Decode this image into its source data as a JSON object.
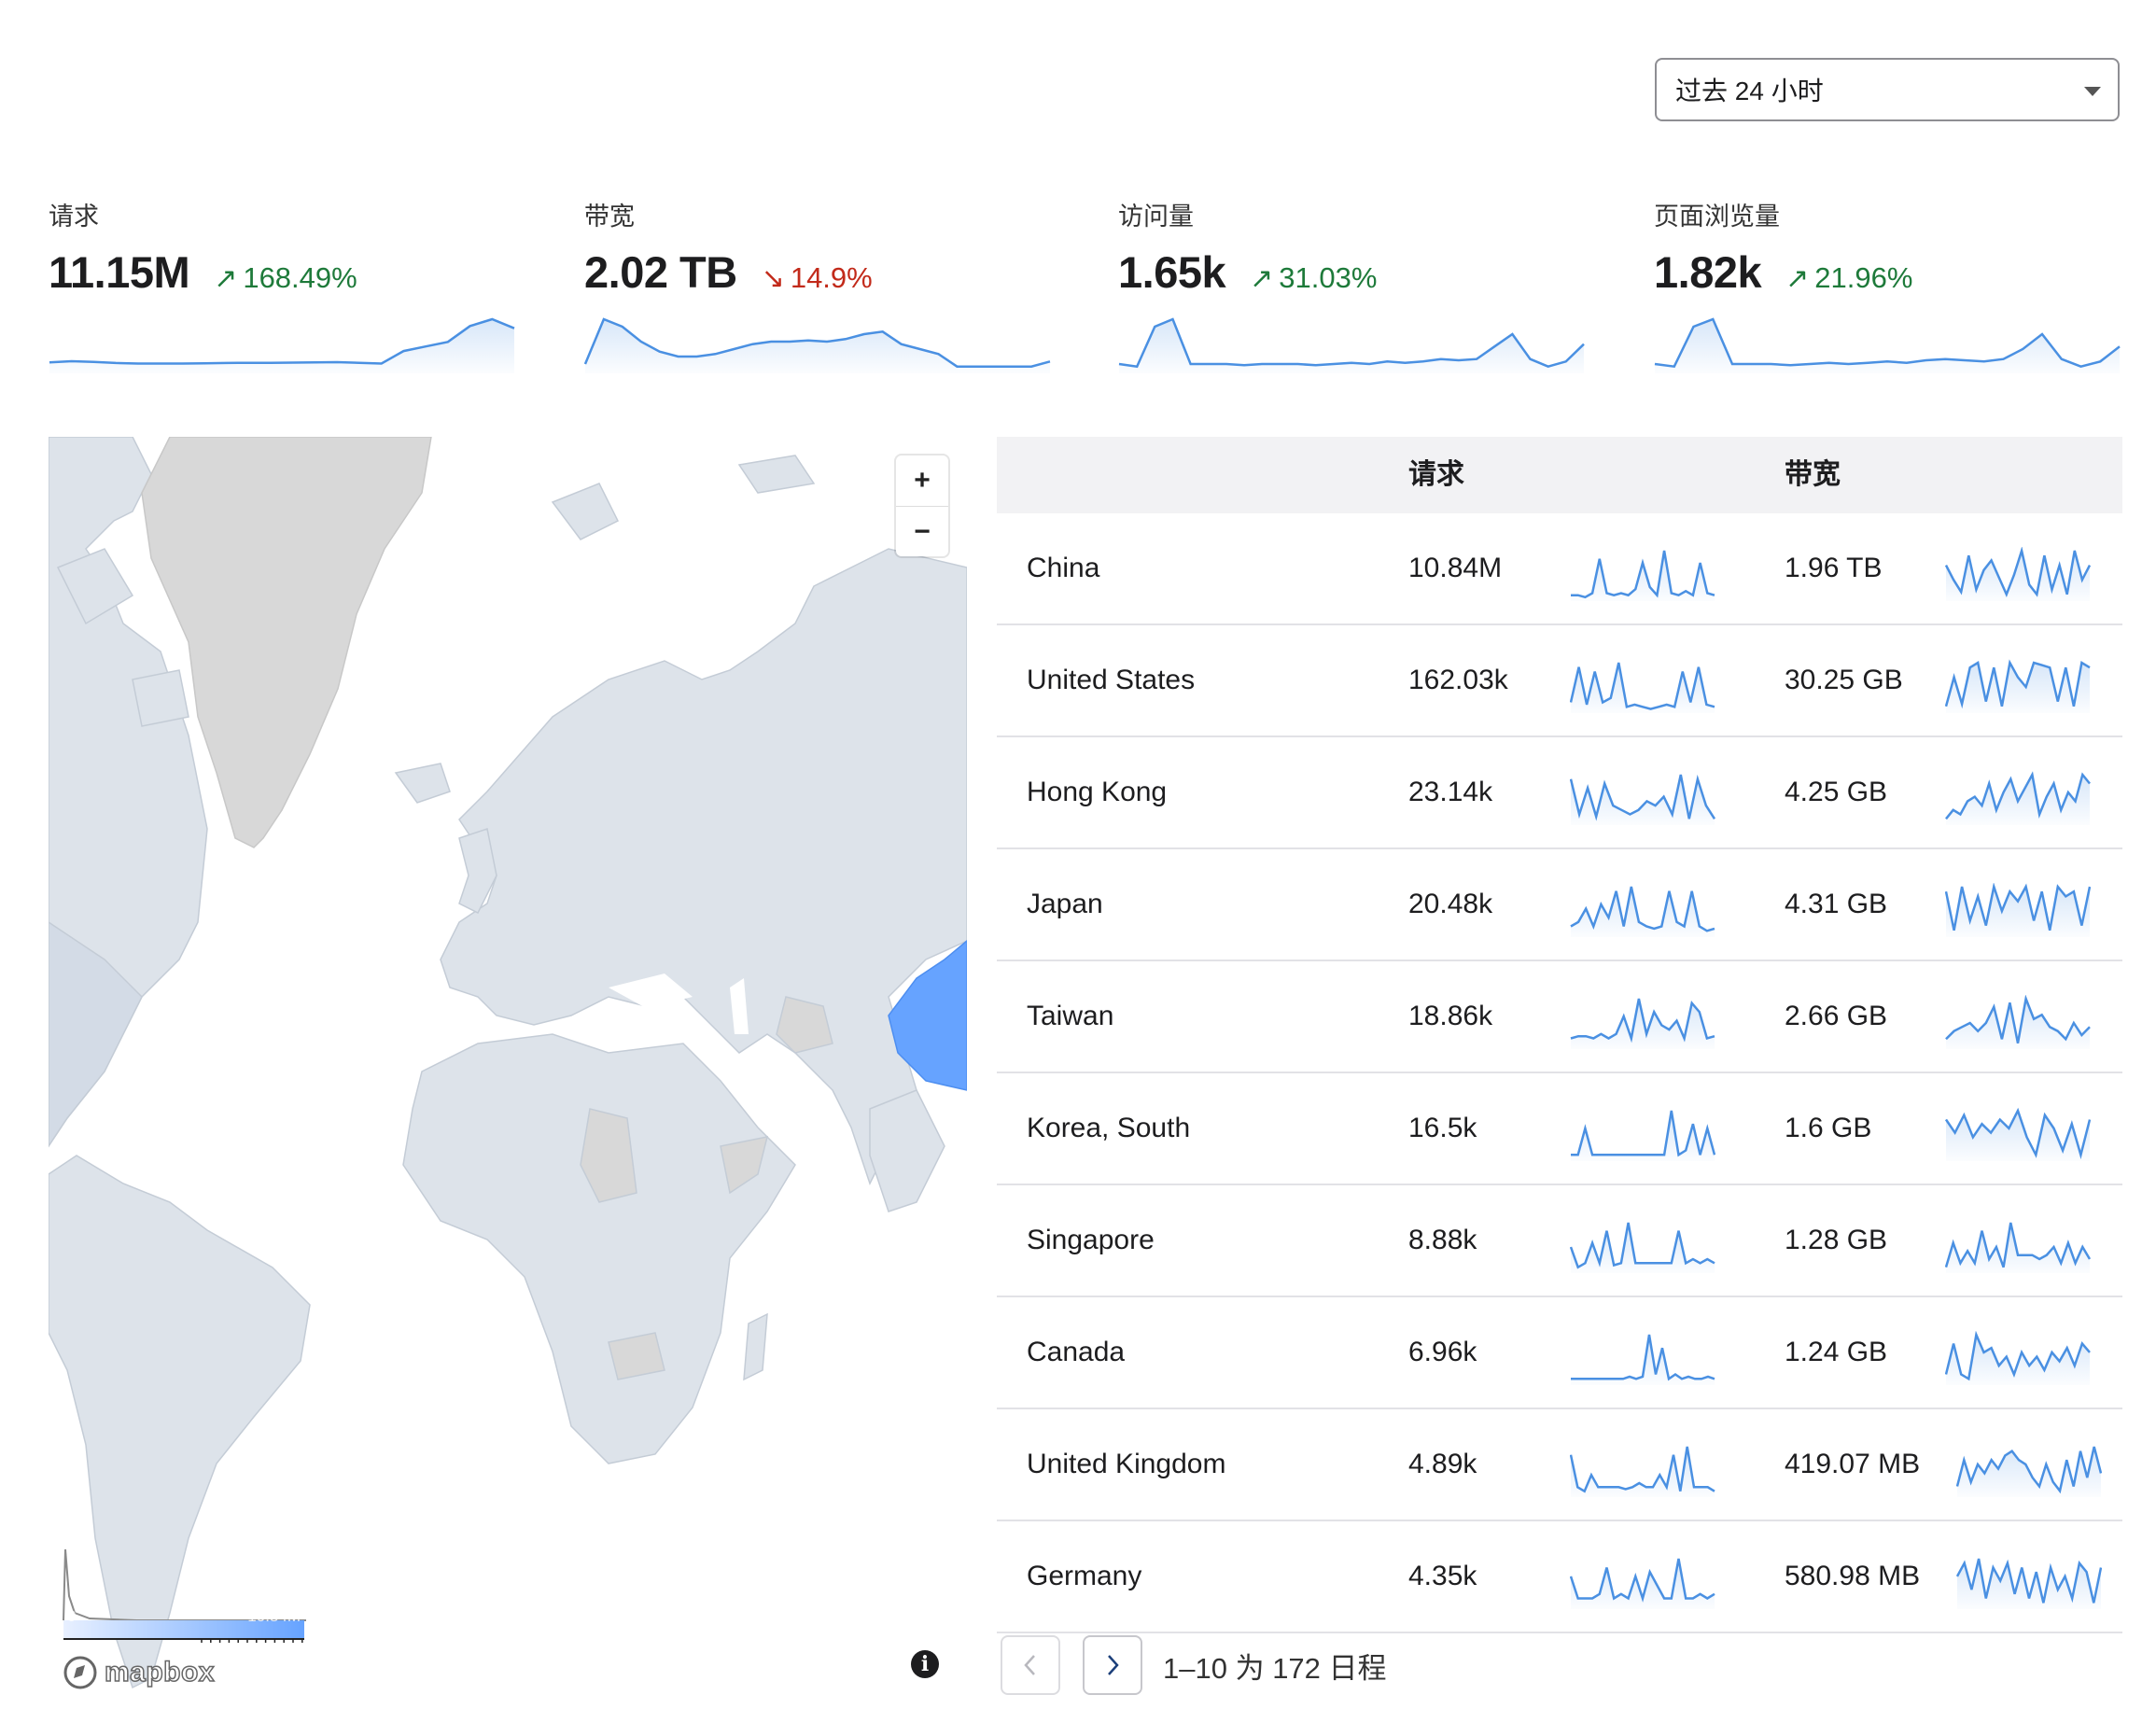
{
  "time_range": {
    "selected": "过去 24 小时"
  },
  "kpis": [
    {
      "label": "请求",
      "value": "11.15M",
      "change": "168.49%",
      "direction": "up",
      "trend": [
        8,
        9,
        8.5,
        7.5,
        7,
        7,
        7,
        7.2,
        7.5,
        7.6,
        7.6,
        7.8,
        8,
        8.2,
        7.6,
        7,
        18,
        22,
        26,
        40,
        46,
        38
      ]
    },
    {
      "label": "带宽",
      "value": "2.02 TB",
      "change": "14.9%",
      "direction": "down",
      "trend": [
        6,
        42,
        36,
        24,
        16,
        12,
        12,
        14,
        18,
        22,
        24,
        24,
        25,
        24,
        26,
        30,
        32,
        22,
        18,
        14,
        4,
        4,
        4,
        4,
        4,
        8
      ]
    },
    {
      "label": "访问量",
      "value": "1.65k",
      "change": "31.03%",
      "direction": "up",
      "trend": [
        6,
        4,
        36,
        42,
        6,
        6,
        6,
        5,
        6,
        6,
        6,
        5,
        6,
        7,
        6,
        8,
        7,
        8,
        10,
        9,
        10,
        20,
        30,
        10,
        4,
        8,
        22
      ]
    },
    {
      "label": "页面浏览量",
      "value": "1.82k",
      "change": "21.96%",
      "direction": "up",
      "trend": [
        6,
        4,
        36,
        42,
        6,
        6,
        6,
        5,
        6,
        7,
        6,
        7,
        8,
        7,
        9,
        10,
        9,
        8,
        10,
        18,
        30,
        10,
        4,
        8,
        20
      ]
    }
  ],
  "map": {
    "zoom_in": "+",
    "zoom_out": "−",
    "legend_min": "0",
    "legend_max": "10.84M",
    "attribution": "mapbox",
    "info": "i",
    "highlight_color": "#66a3ff",
    "land_color": "#dde3ea",
    "nodata_color": "#d8d8d8"
  },
  "table": {
    "columns": [
      "",
      "请求",
      "",
      "带宽",
      ""
    ],
    "rows": [
      {
        "country": "China",
        "requests": "10.84M",
        "bandwidth": "1.96 TB",
        "req_spark": [
          2,
          2,
          1,
          3,
          20,
          3,
          2,
          3,
          2,
          5,
          18,
          6,
          2,
          24,
          3,
          2,
          4,
          2,
          18,
          3,
          2
        ],
        "bw_spark": [
          14,
          8,
          3,
          18,
          4,
          12,
          16,
          9,
          2,
          10,
          20,
          6,
          2,
          18,
          4,
          14,
          2,
          20,
          8,
          14
        ]
      },
      {
        "country": "United States",
        "requests": "162.03k",
        "bandwidth": "30.25 GB",
        "req_spark": [
          4,
          20,
          3,
          18,
          4,
          6,
          22,
          2,
          3,
          2,
          1,
          2,
          3,
          2,
          18,
          4,
          20,
          3,
          2
        ],
        "bw_spark": [
          2,
          14,
          3,
          18,
          20,
          4,
          18,
          2,
          20,
          14,
          10,
          20,
          19,
          18,
          4,
          18,
          2,
          20,
          18
        ]
      },
      {
        "country": "Hong Kong",
        "requests": "23.14k",
        "bandwidth": "4.25 GB",
        "req_spark": [
          20,
          4,
          16,
          3,
          18,
          8,
          6,
          4,
          6,
          10,
          8,
          12,
          4,
          22,
          2,
          20,
          8,
          2
        ],
        "bw_spark": [
          2,
          6,
          4,
          10,
          12,
          8,
          18,
          6,
          14,
          20,
          10,
          16,
          22,
          4,
          12,
          18,
          6,
          14,
          10,
          22,
          18
        ]
      },
      {
        "country": "Japan",
        "requests": "20.48k",
        "bandwidth": "4.31 GB",
        "req_spark": [
          4,
          6,
          12,
          4,
          14,
          8,
          20,
          4,
          22,
          6,
          4,
          3,
          4,
          20,
          6,
          4,
          20,
          4,
          2,
          3
        ],
        "bw_spark": [
          18,
          2,
          20,
          6,
          16,
          4,
          20,
          10,
          18,
          14,
          20,
          6,
          18,
          2,
          20,
          16,
          18,
          4,
          20
        ]
      },
      {
        "country": "Taiwan",
        "requests": "18.86k",
        "bandwidth": "2.66 GB",
        "req_spark": [
          4,
          5,
          5,
          4,
          6,
          4,
          6,
          14,
          4,
          22,
          6,
          16,
          10,
          8,
          12,
          4,
          20,
          16,
          4,
          5
        ],
        "bw_spark": [
          4,
          8,
          10,
          12,
          8,
          12,
          20,
          4,
          22,
          2,
          24,
          14,
          16,
          10,
          8,
          4,
          12,
          6,
          10
        ]
      },
      {
        "country": "Korea, South",
        "requests": "16.5k",
        "bandwidth": "1.6 GB",
        "req_spark": [
          2,
          2,
          14,
          2,
          2,
          2,
          2,
          2,
          2,
          2,
          2,
          2,
          2,
          2,
          22,
          2,
          4,
          16,
          2,
          14,
          2
        ],
        "bw_spark": [
          18,
          12,
          20,
          10,
          16,
          12,
          18,
          14,
          22,
          10,
          2,
          20,
          14,
          4,
          16,
          2,
          18
        ]
      },
      {
        "country": "Singapore",
        "requests": "8.88k",
        "bandwidth": "1.28 GB",
        "req_spark": [
          12,
          2,
          4,
          14,
          4,
          20,
          3,
          4,
          24,
          4,
          4,
          4,
          4,
          4,
          4,
          20,
          4,
          6,
          4,
          6,
          4
        ],
        "bw_spark": [
          2,
          14,
          4,
          10,
          4,
          20,
          6,
          12,
          2,
          24,
          8,
          8,
          8,
          6,
          8,
          12,
          4,
          14,
          4,
          12,
          6
        ]
      },
      {
        "country": "Canada",
        "requests": "6.96k",
        "bandwidth": "1.24 GB",
        "req_spark": [
          2,
          2,
          2,
          2,
          2,
          2,
          2,
          2,
          2,
          3,
          2,
          3,
          22,
          4,
          16,
          2,
          4,
          2,
          3,
          2,
          2,
          3,
          2
        ],
        "bw_spark": [
          4,
          18,
          4,
          2,
          22,
          14,
          16,
          8,
          12,
          4,
          14,
          8,
          12,
          6,
          14,
          10,
          16,
          8,
          18,
          14
        ]
      },
      {
        "country": "United Kingdom",
        "requests": "4.89k",
        "bandwidth": "419.07 MB",
        "req_spark": [
          20,
          4,
          2,
          10,
          4,
          4,
          4,
          4,
          3,
          4,
          6,
          4,
          4,
          10,
          4,
          20,
          2,
          24,
          4,
          4,
          4,
          2
        ],
        "bw_spark": [
          4,
          16,
          6,
          14,
          10,
          16,
          12,
          18,
          20,
          16,
          14,
          8,
          4,
          14,
          6,
          2,
          16,
          4,
          20,
          8,
          22,
          10
        ]
      },
      {
        "country": "Germany",
        "requests": "4.35k",
        "bandwidth": "580.98 MB",
        "req_spark": [
          14,
          4,
          4,
          4,
          6,
          18,
          4,
          6,
          4,
          14,
          4,
          16,
          10,
          4,
          4,
          22,
          4,
          4,
          6,
          4,
          6
        ],
        "bw_spark": [
          14,
          20,
          8,
          22,
          4,
          18,
          12,
          20,
          6,
          18,
          4,
          16,
          2,
          18,
          8,
          14,
          4,
          20,
          16,
          2,
          18
        ]
      }
    ]
  },
  "pagination": {
    "prev": "‹",
    "next": "›",
    "summary": "1–10 为 172 日程"
  }
}
